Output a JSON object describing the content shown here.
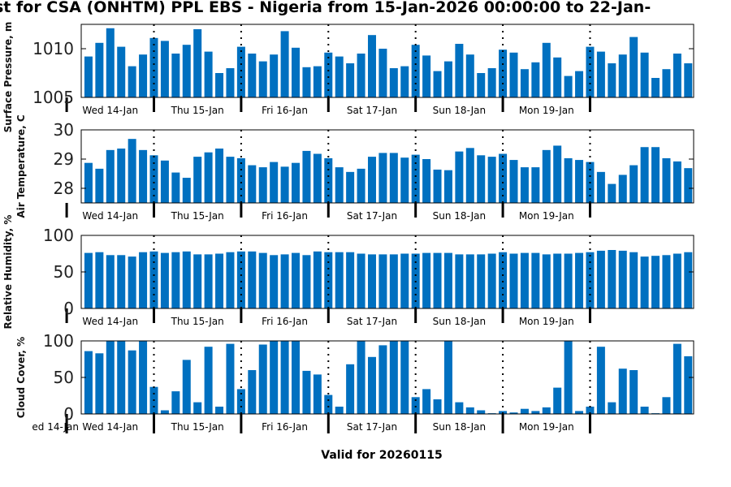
{
  "title": "st for CSA (ONHTM) PPL EBS  - Nigeria from 15-Jan-2026 00:00:00 to 22-Jan-",
  "valid_label": "Valid for 20260115",
  "clipped_day_label": "ed 14-Jan",
  "colors": {
    "bar": "#0070c0",
    "axis": "#000000"
  },
  "chart_data": [
    {
      "type": "bar",
      "ylabel": "Surface Pressure, m",
      "ylim": [
        1005,
        1012.5
      ],
      "yticks": [
        1005,
        1010
      ],
      "xlim_hours": [
        4,
        172.5
      ],
      "day_labels": [
        "Wed 14-Jan",
        "Thu 15-Jan",
        "Fri 16-Jan",
        "Sat 17-Jan",
        "Sun 18-Jan",
        "Mon 19-Jan"
      ],
      "values": [
        1009.2,
        1010.6,
        1012.1,
        1010.2,
        1008.2,
        1009.4,
        1011.1,
        1010.8,
        1009.5,
        1010.4,
        1012.0,
        1009.7,
        1007.5,
        1008.0,
        1010.2,
        1009.5,
        1008.7,
        1009.4,
        1011.8,
        1010.1,
        1008.1,
        1008.2,
        1009.6,
        1009.2,
        1008.5,
        1009.5,
        1011.4,
        1010.0,
        1008.0,
        1008.2,
        1010.4,
        1009.3,
        1007.7,
        1008.7,
        1010.5,
        1009.4,
        1007.5,
        1008.0,
        1009.9,
        1009.6,
        1007.9,
        1008.6,
        1010.6,
        1009.1,
        1007.2,
        1007.7,
        1010.2,
        1009.7,
        1008.5,
        1009.4,
        1011.2,
        1009.6,
        1007.0,
        1007.9,
        1009.5,
        1008.5
      ]
    },
    {
      "type": "bar",
      "ylabel": "Air Temperature, C",
      "ylim": [
        27.5,
        30
      ],
      "yticks": [
        28,
        29,
        30
      ],
      "xlim_hours": [
        4,
        172.5
      ],
      "day_labels": [
        "Wed 14-Jan",
        "Thu 15-Jan",
        "Fri 16-Jan",
        "Sat 17-Jan",
        "Sun 18-Jan",
        "Mon 19-Jan"
      ],
      "values": [
        28.87,
        28.67,
        29.31,
        29.36,
        29.69,
        29.31,
        29.13,
        28.95,
        28.54,
        28.36,
        29.08,
        29.23,
        29.36,
        29.08,
        29.03,
        28.79,
        28.72,
        28.9,
        28.74,
        28.87,
        29.28,
        29.18,
        29.03,
        28.72,
        28.56,
        28.67,
        29.08,
        29.21,
        29.21,
        29.05,
        29.15,
        29.0,
        28.64,
        28.62,
        29.26,
        29.38,
        29.13,
        29.08,
        29.18,
        28.97,
        28.72,
        28.72,
        29.31,
        29.46,
        29.03,
        28.97,
        28.9,
        28.56,
        28.15,
        28.46,
        28.79,
        29.41,
        29.41,
        29.03,
        28.92,
        28.69
      ]
    },
    {
      "type": "bar",
      "ylabel": "Relative Humidity, %",
      "ylim": [
        0,
        100
      ],
      "yticks": [
        0,
        50,
        100
      ],
      "xlim_hours": [
        4,
        172.5
      ],
      "day_labels": [
        "Wed 14-Jan",
        "Thu 15-Jan",
        "Fri 16-Jan",
        "Sat 17-Jan",
        "Sun 18-Jan",
        "Mon 19-Jan"
      ],
      "values": [
        76,
        77,
        73,
        73,
        71,
        77,
        78,
        76,
        77,
        78,
        74,
        74,
        75,
        77,
        78,
        78,
        76,
        73,
        74,
        76,
        73,
        78,
        77,
        77,
        77,
        75,
        74,
        74,
        74,
        75,
        75,
        76,
        76,
        76,
        74,
        74,
        74,
        75,
        77,
        75,
        76,
        76,
        74,
        75,
        75,
        76,
        77,
        79,
        80,
        79,
        77,
        71,
        72,
        73,
        75,
        77
      ]
    },
    {
      "type": "bar",
      "ylabel": "Cloud Cover, %",
      "ylim": [
        0,
        100
      ],
      "yticks": [
        0,
        50,
        100
      ],
      "xlim_hours": [
        4,
        172.5
      ],
      "day_labels": [
        "Wed 14-Jan",
        "Thu 15-Jan",
        "Fri 16-Jan",
        "Sat 17-Jan",
        "Sun 18-Jan",
        "Mon 19-Jan"
      ],
      "values": [
        86,
        83,
        100,
        100,
        87,
        100,
        37,
        5,
        31,
        74,
        16,
        92,
        10,
        96,
        34,
        60,
        95,
        100,
        100,
        100,
        59,
        54,
        26,
        10,
        68,
        100,
        78,
        94,
        100,
        100,
        23,
        34,
        20,
        100,
        16,
        9,
        5,
        1,
        4,
        2,
        7,
        4,
        9,
        36,
        100,
        4,
        10,
        92,
        16,
        62,
        60,
        10,
        1,
        23,
        96,
        79
      ]
    }
  ]
}
